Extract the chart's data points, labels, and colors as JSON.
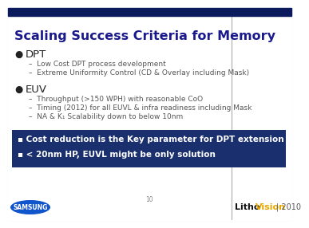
{
  "title": "Scaling Success Criteria for Memory",
  "title_color": "#1a1a8c",
  "title_fontsize": 11.5,
  "bg_color": "#f0f0f0",
  "header_bar_color": "#0a1a5c",
  "bullet1_header": "DPT",
  "bullet1_items": [
    "Low Cost DPT process development",
    "Extreme Uniformity Control (CD & Overlay including Mask)"
  ],
  "bullet2_header": "EUV",
  "bullet2_items": [
    "Throughput (>150 WPH) with reasonable CoO",
    "Timing (2012) for all EUVL & infra readiness including Mask",
    "NA & K₁ Scalability down to below 10nm"
  ],
  "highlight_box_color": "#1a2f6e",
  "highlight_items": [
    "▪ Cost reduction is the Key parameter for DPT extension",
    "▪ < 20nm HP, EUVL might be only solution"
  ],
  "highlight_fontsize": 7.5,
  "highlight_text_color": "#ffffff",
  "footer_page": "10",
  "bullet_dot_color": "#222222",
  "bullet_header_color": "#222222",
  "sub_bullet_color": "#555555",
  "header_fontsize": 9.5,
  "sub_fontsize": 6.5,
  "samsung_text": "SAMSUNG",
  "litho_black": "Litho",
  "litho_yellow": "Vision",
  "litho_year": "| 2010"
}
